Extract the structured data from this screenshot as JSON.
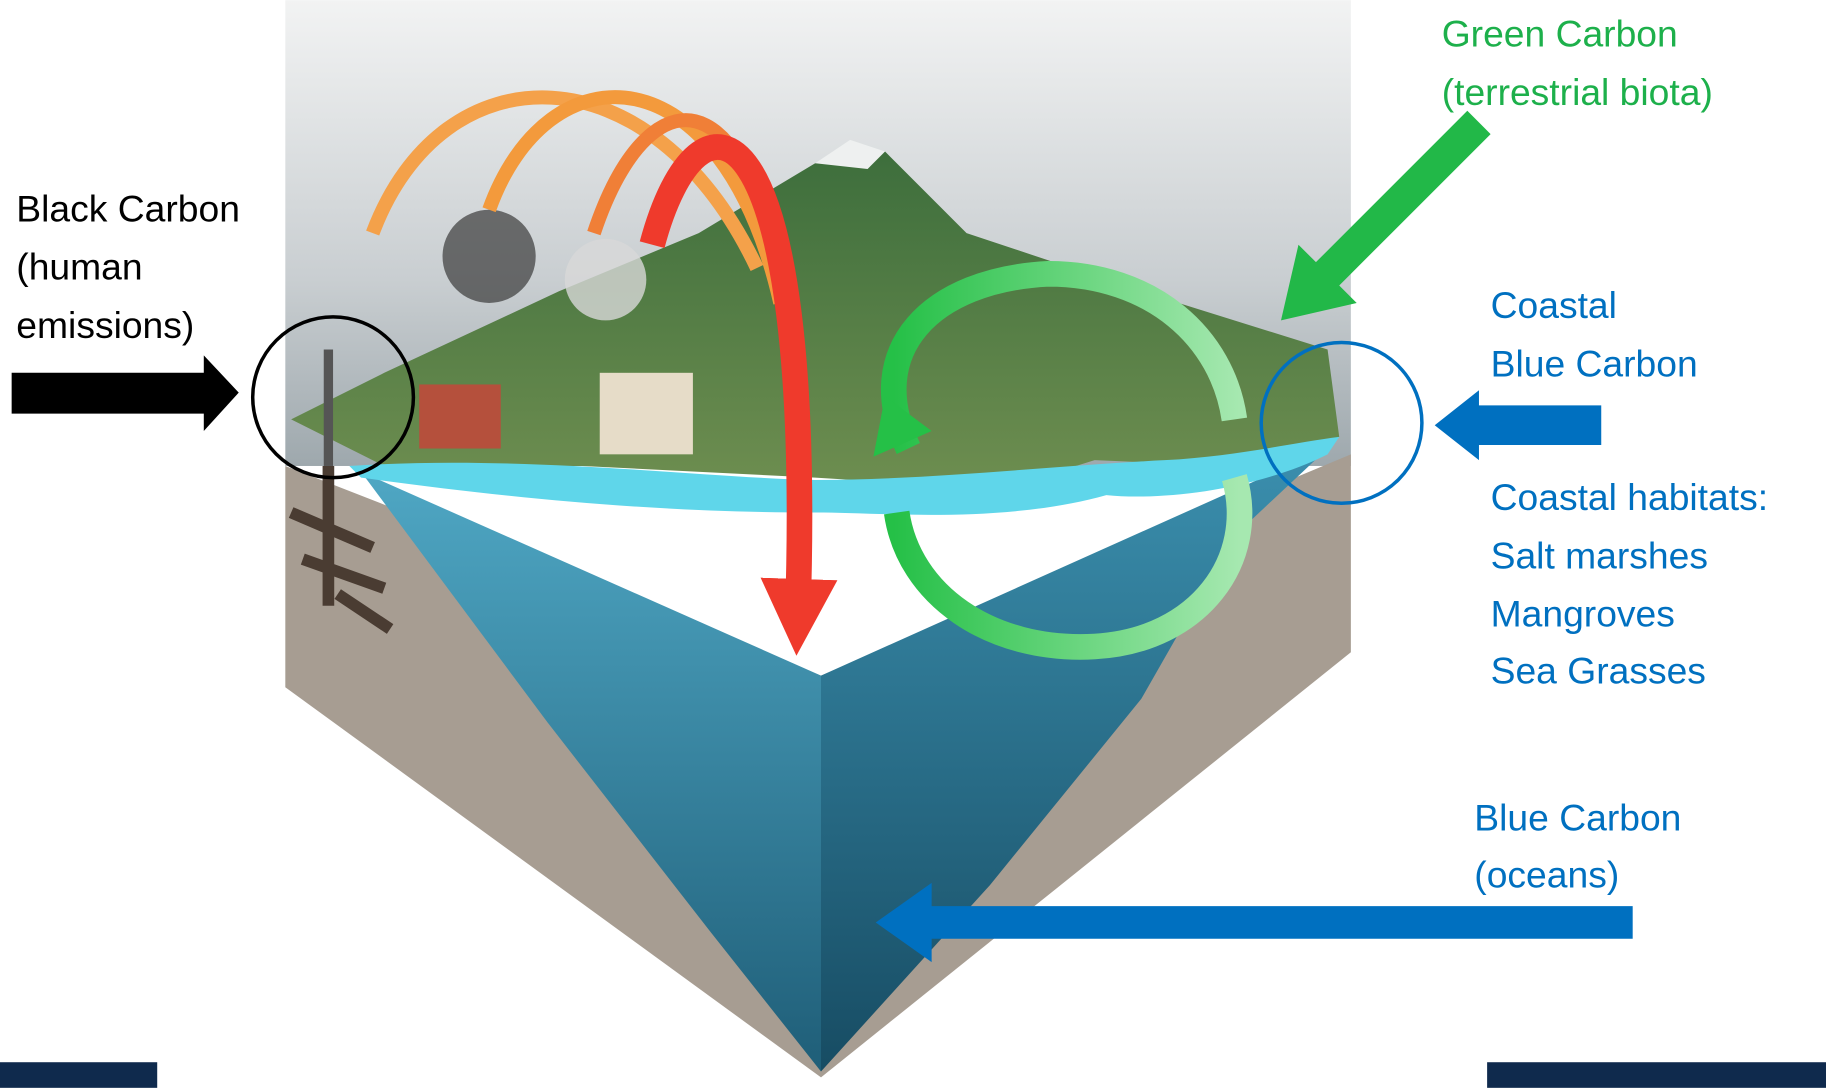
{
  "labels": {
    "black_carbon": [
      "Black Carbon",
      "(human",
      "emissions)"
    ],
    "green_carbon": [
      "Green Carbon",
      "(terrestrial biota)"
    ],
    "coastal_blue_carbon": [
      "Coastal",
      "Blue Carbon"
    ],
    "coastal_habitats": [
      "Coastal habitats:",
      "Salt marshes",
      "Mangroves",
      "Sea Grasses"
    ],
    "blue_carbon_oceans": [
      "Blue Carbon",
      "(oceans)"
    ]
  }
}
